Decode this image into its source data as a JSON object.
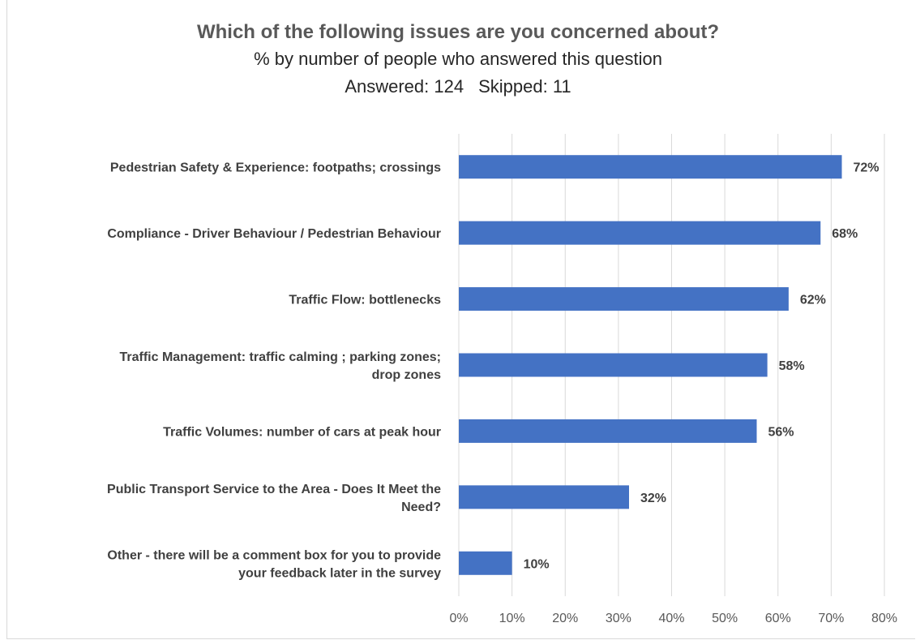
{
  "chart_data": {
    "type": "bar",
    "orientation": "horizontal",
    "title": "Which of the following issues are you concerned about?",
    "subtitle": "% by number of people who answered this question",
    "answered_label": "Answered: 124",
    "skipped_label": "Skipped: 11",
    "categories": [
      [
        "Pedestrian Safety & Experience: footpaths; crossings"
      ],
      [
        "Compliance - Driver Behaviour / Pedestrian Behaviour"
      ],
      [
        "Traffic Flow: bottlenecks"
      ],
      [
        "Traffic Management: traffic calming ; parking zones;",
        "drop zones"
      ],
      [
        "Traffic Volumes: number of cars at peak hour"
      ],
      [
        "Public Transport Service to the Area - Does It Meet the",
        "Need?"
      ],
      [
        "Other - there will be a comment box  for you to provide",
        "your feedback later in the survey"
      ]
    ],
    "values": [
      72,
      68,
      62,
      58,
      56,
      32,
      10
    ],
    "value_labels": [
      "72%",
      "68%",
      "62%",
      "58%",
      "56%",
      "32%",
      "10%"
    ],
    "x_ticks": [
      "0%",
      "10%",
      "20%",
      "30%",
      "40%",
      "50%",
      "60%",
      "70%",
      "80%"
    ],
    "xlim": [
      0,
      80
    ],
    "grid": "vertical",
    "bar_color": "#4472c4",
    "grid_color": "#d9d9d9"
  }
}
